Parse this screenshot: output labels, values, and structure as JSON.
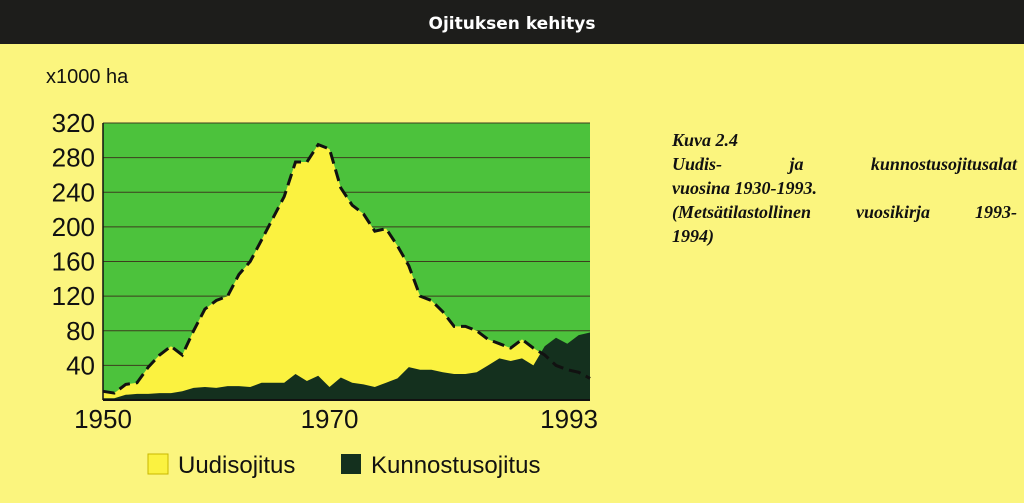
{
  "header": {
    "title": "Ojituksen kehitys"
  },
  "caption": {
    "line1": "Kuva 2.4",
    "line2": "Uudis- ja kunnostusojitusalat",
    "line3": "vuosina 1930-1993.",
    "line4": "(Metsätilastollinen vuosikirja 1993-",
    "line5": "1994)"
  },
  "colors": {
    "background": "#fbf57e",
    "plot_area": "#4cc23c",
    "uudisojitus": "#fbf240",
    "kunnostusojitus": "#14301e",
    "header": "#1d1d1b"
  },
  "chart_data": {
    "type": "area",
    "ylabel": "x1000 ha",
    "xlabel": "",
    "ylim": [
      0,
      320
    ],
    "xlim": [
      1950,
      1993
    ],
    "x_ticks": [
      "1950",
      "1970",
      "1993"
    ],
    "y_ticks": [
      "40",
      "80",
      "120",
      "160",
      "200",
      "240",
      "280",
      "320"
    ],
    "grid": true,
    "legend_position": "bottom",
    "x": [
      1950,
      1951,
      1952,
      1953,
      1954,
      1955,
      1956,
      1957,
      1958,
      1959,
      1960,
      1961,
      1962,
      1963,
      1964,
      1965,
      1966,
      1967,
      1968,
      1969,
      1970,
      1971,
      1972,
      1973,
      1974,
      1975,
      1976,
      1977,
      1978,
      1979,
      1980,
      1981,
      1982,
      1983,
      1984,
      1985,
      1986,
      1987,
      1988,
      1989,
      1990,
      1991,
      1992,
      1993
    ],
    "series": [
      {
        "name": "Uudisojitus",
        "color": "#fbf240",
        "values": [
          10,
          8,
          18,
          20,
          38,
          52,
          62,
          52,
          80,
          105,
          115,
          120,
          145,
          160,
          185,
          210,
          235,
          275,
          275,
          295,
          290,
          245,
          225,
          215,
          195,
          198,
          178,
          155,
          120,
          115,
          102,
          85,
          85,
          80,
          70,
          65,
          60,
          70,
          60,
          52,
          40,
          35,
          32,
          25
        ]
      },
      {
        "name": "Kunnostusojitus",
        "color": "#14301e",
        "values": [
          2,
          2,
          6,
          7,
          7,
          8,
          8,
          10,
          14,
          15,
          14,
          16,
          16,
          15,
          20,
          20,
          20,
          30,
          22,
          28,
          15,
          26,
          20,
          18,
          15,
          20,
          25,
          38,
          35,
          35,
          32,
          30,
          30,
          32,
          40,
          48,
          45,
          48,
          40,
          62,
          72,
          65,
          75,
          78
        ]
      }
    ]
  }
}
